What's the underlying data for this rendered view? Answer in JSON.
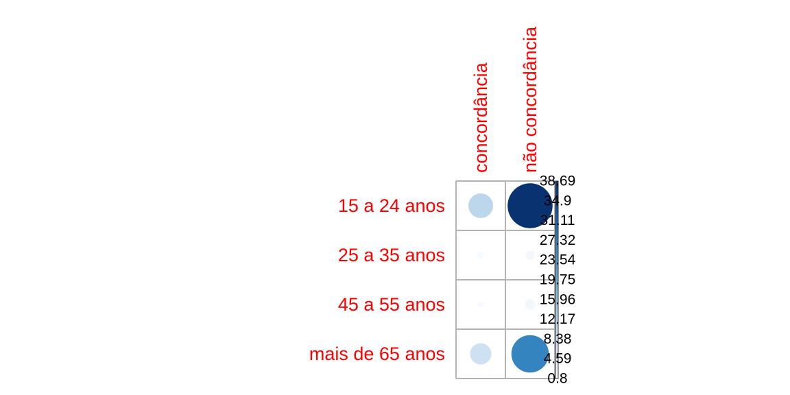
{
  "chart_data": {
    "type": "heatmap",
    "subtype": "corrplot-circle",
    "rows": [
      "15 a 24 anos",
      "25 a 35 anos",
      "45 a 55 anos",
      "mais de 65 anos"
    ],
    "columns": [
      "concordância",
      "não concordância"
    ],
    "values": [
      [
        11.5,
        38.2
      ],
      [
        0.9,
        1.6
      ],
      [
        0.8,
        2.1
      ],
      [
        8.6,
        26.5
      ]
    ],
    "color_scale": {
      "min": 0.8,
      "max": 38.69,
      "ticks": [
        "38.69",
        "34.9",
        "31.11",
        "27.32",
        "23.54",
        "19.75",
        "15.96",
        "12.17",
        "8.38",
        "4.59",
        "0.8"
      ],
      "colors": [
        "#f7fbff",
        "#deebf7",
        "#c6dbef",
        "#9ecae1",
        "#6baed6",
        "#4292c6",
        "#2171b5",
        "#08519c",
        "#08306b"
      ]
    },
    "label_color": "#ff0000",
    "grid_color": "#b3b3b3"
  }
}
